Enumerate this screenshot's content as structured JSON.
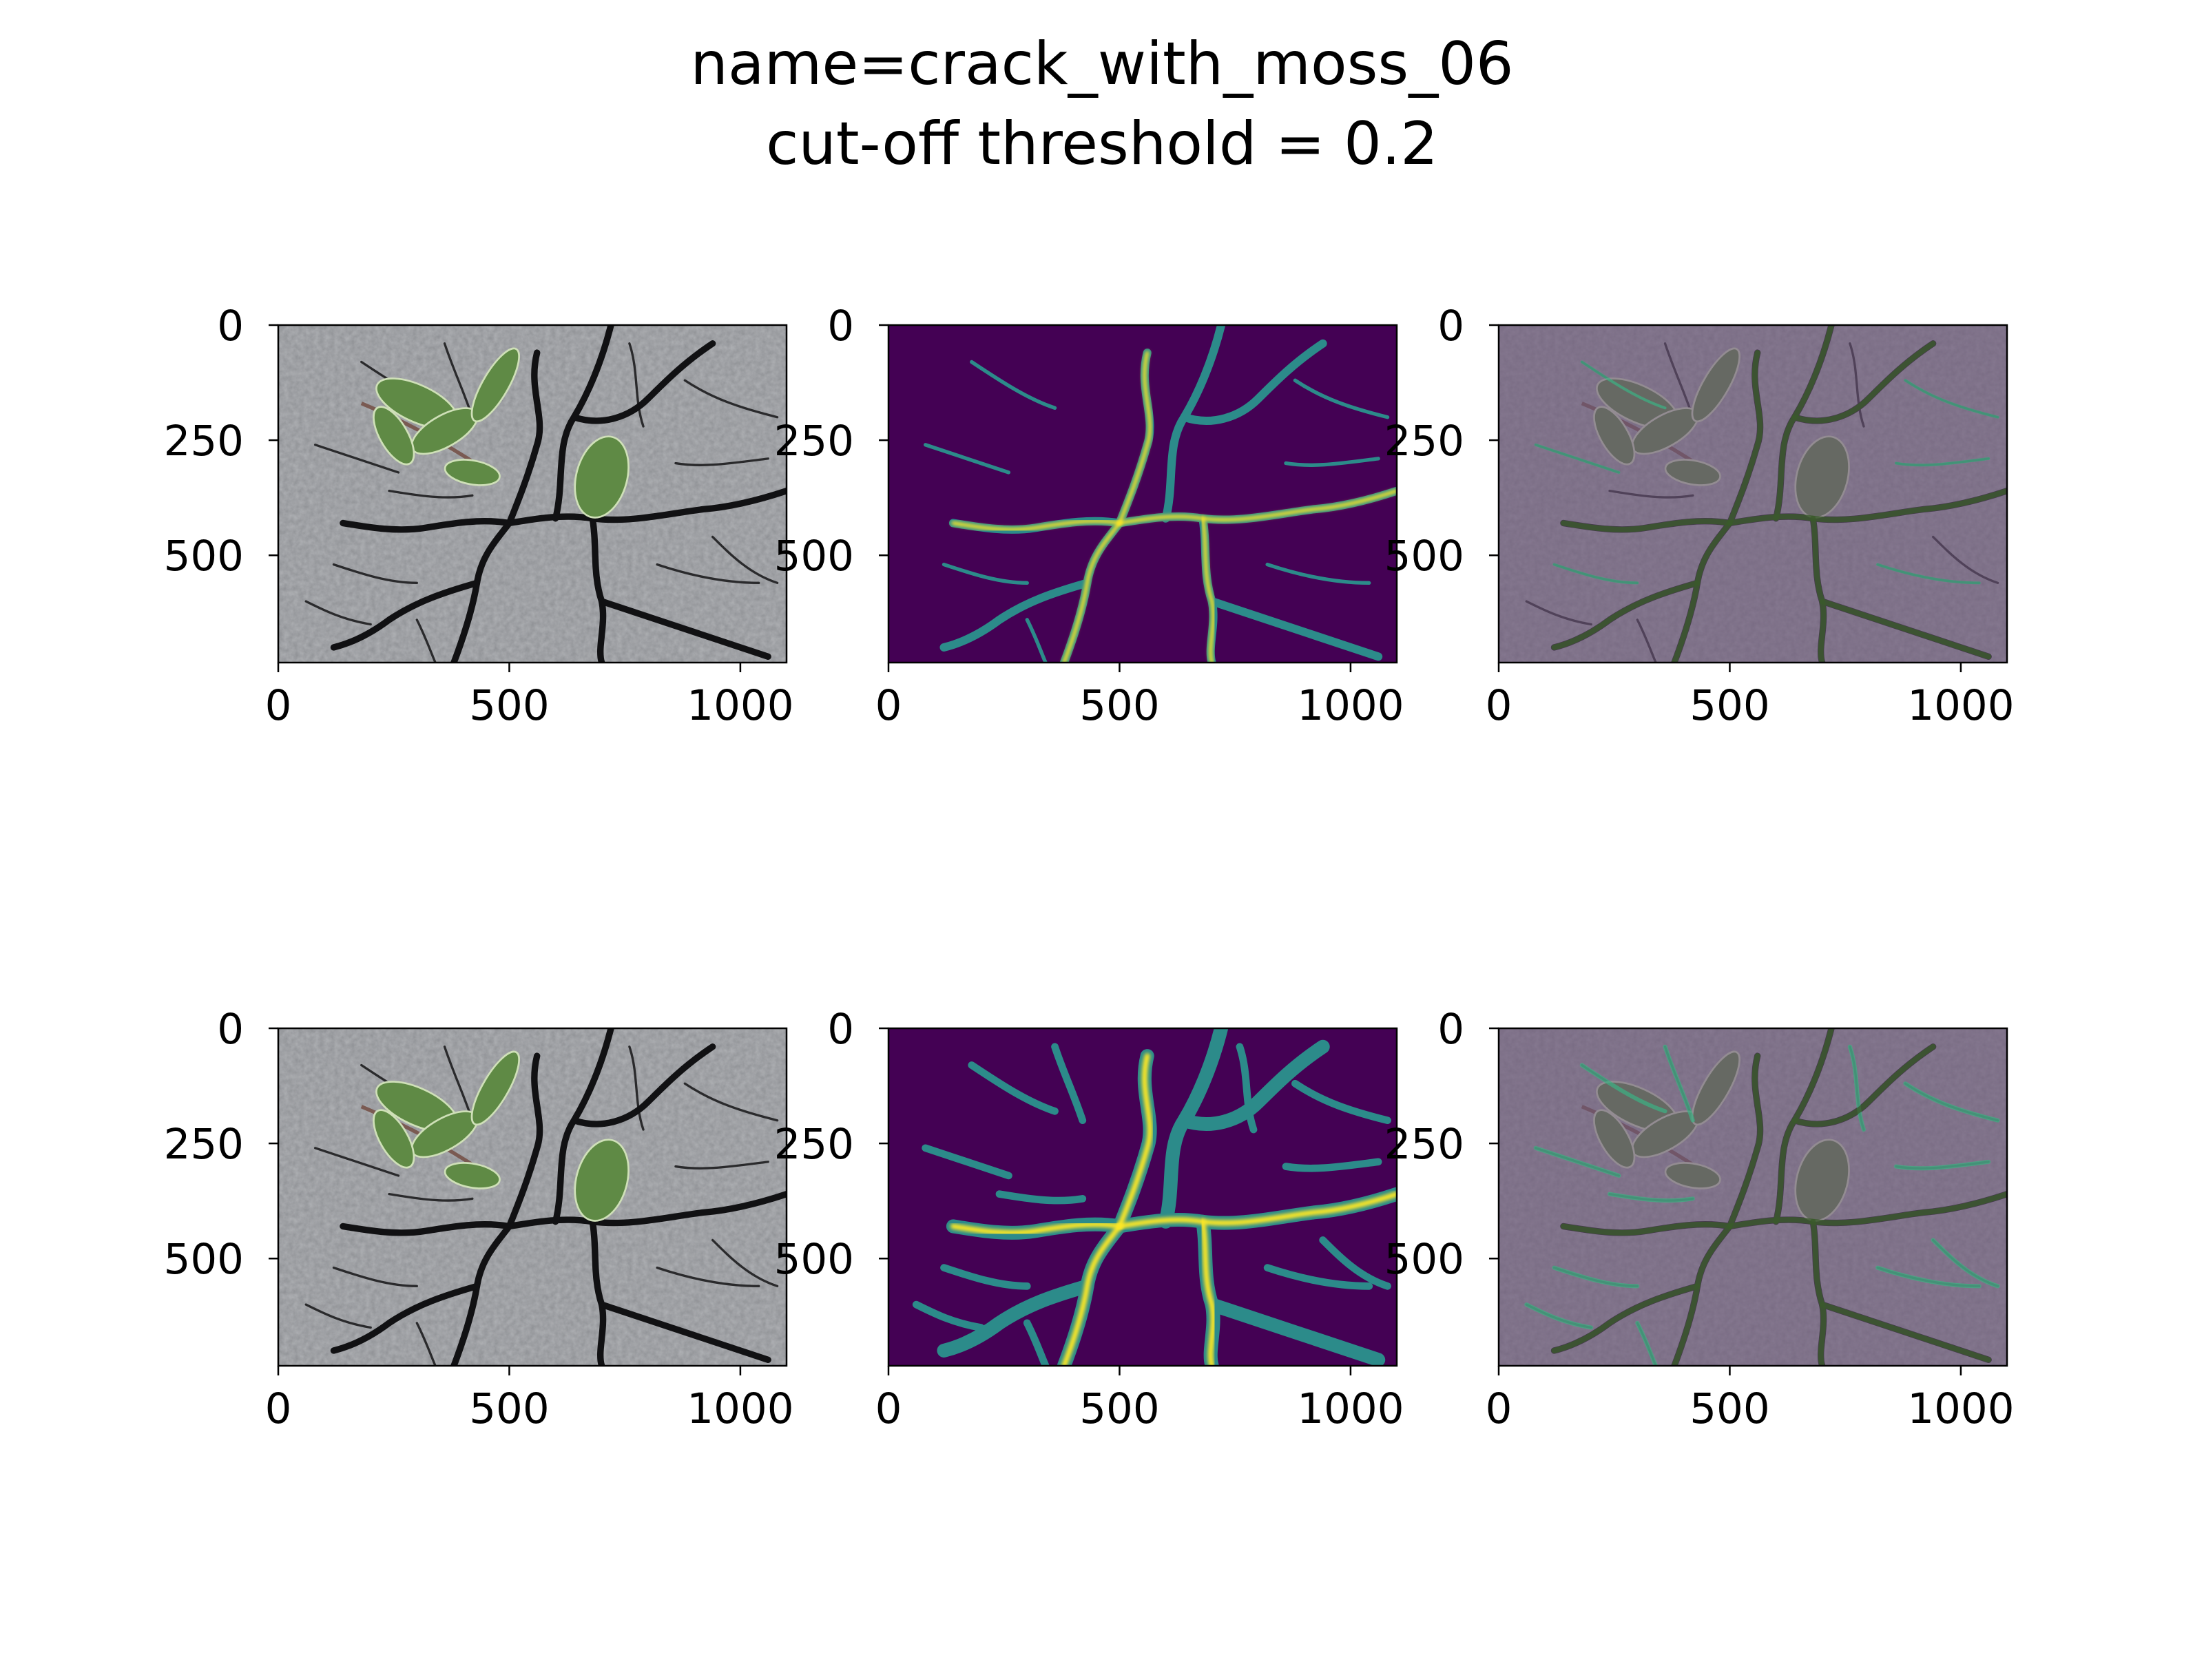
{
  "figure": {
    "title_line1": "name=crack_with_moss_06",
    "title_line2": "cut-off threshold = 0.2"
  },
  "panels": [
    {
      "name": "input-image-top",
      "kind": "photo",
      "row": 0,
      "col": 0
    },
    {
      "name": "prediction-top",
      "kind": "mask",
      "row": 0,
      "col": 1
    },
    {
      "name": "overlay-top",
      "kind": "overlay",
      "row": 0,
      "col": 2
    },
    {
      "name": "input-image-bottom",
      "kind": "photo",
      "row": 1,
      "col": 0
    },
    {
      "name": "prediction-bottom",
      "kind": "mask",
      "row": 1,
      "col": 1
    },
    {
      "name": "overlay-bottom",
      "kind": "overlay",
      "row": 1,
      "col": 2
    }
  ],
  "axes": {
    "x_ticks": [
      "0",
      "500",
      "1000"
    ],
    "y_ticks": [
      "0",
      "250",
      "500"
    ],
    "x_range": [
      0,
      1100
    ],
    "y_range": [
      0,
      733
    ]
  },
  "colors": {
    "asphalt": "#8e9094",
    "viridis_low": "#440154",
    "viridis_mid": "#2c8b8a",
    "viridis_high": "#fde725",
    "overlay_tint": "#6a5478",
    "leaf": "#5f8a45"
  }
}
